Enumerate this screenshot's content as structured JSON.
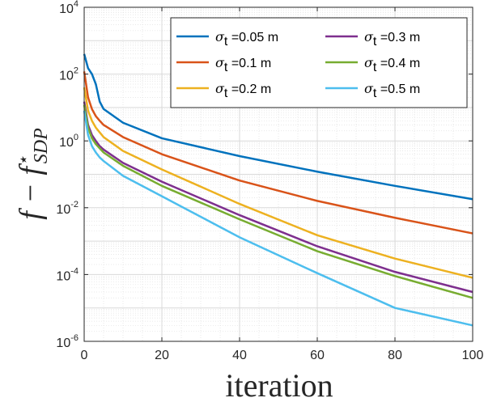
{
  "chart_data": {
    "type": "line",
    "title": "",
    "xlabel": "iteration",
    "ylabel": "f − f⋆_SDP",
    "ylabel_parts": {
      "main": "f − f",
      "sup": "⋆",
      "sub": "SDP"
    },
    "xlim": [
      0,
      100
    ],
    "ylim": [
      1e-06,
      10000
    ],
    "yscale": "log",
    "grid": true,
    "legend_placement": "top-right",
    "x_ticks": [
      "0",
      "20",
      "40",
      "60",
      "80",
      "100"
    ],
    "y_ticks": [
      {
        "base": "10",
        "exp": "-6"
      },
      {
        "base": "10",
        "exp": "-4"
      },
      {
        "base": "10",
        "exp": "-2"
      },
      {
        "base": "10",
        "exp": "0"
      },
      {
        "base": "10",
        "exp": "2"
      },
      {
        "base": "10",
        "exp": "4"
      }
    ],
    "series": [
      {
        "name": "σt =0.05 m",
        "sym": "σ",
        "sub": "t",
        "rest": " =0.05 m",
        "color": "#0072BD",
        "x": [
          0,
          1,
          2,
          3,
          4,
          5,
          10,
          20,
          40,
          60,
          80,
          100
        ],
        "y": [
          400,
          150,
          100,
          50,
          15,
          9,
          3.5,
          1.2,
          0.35,
          0.12,
          0.045,
          0.018
        ]
      },
      {
        "name": "σt =0.1 m",
        "sym": "σ",
        "sub": "t",
        "rest": " =0.1 m",
        "color": "#D95319",
        "x": [
          0,
          1,
          2,
          3,
          4,
          5,
          10,
          20,
          40,
          60,
          80,
          100
        ],
        "y": [
          120,
          20,
          9,
          5.5,
          4,
          3,
          1.3,
          0.4,
          0.065,
          0.016,
          0.005,
          0.0017
        ]
      },
      {
        "name": "σt =0.2 m",
        "sym": "σ",
        "sub": "t",
        "rest": " =0.2 m",
        "color": "#EDB120",
        "x": [
          0,
          1,
          2,
          3,
          4,
          5,
          10,
          20,
          40,
          60,
          80,
          100
        ],
        "y": [
          40,
          8,
          4,
          2.5,
          1.8,
          1.3,
          0.5,
          0.14,
          0.013,
          0.0015,
          0.0003,
          8e-05
        ]
      },
      {
        "name": "σt =0.3 m",
        "sym": "σ",
        "sub": "t",
        "rest": " =0.3 m",
        "color": "#7E2F8E",
        "x": [
          0,
          1,
          2,
          3,
          4,
          5,
          10,
          20,
          40,
          60,
          80,
          100
        ],
        "y": [
          15,
          3,
          1.5,
          1,
          0.7,
          0.55,
          0.22,
          0.06,
          0.006,
          0.0007,
          0.00012,
          3e-05
        ]
      },
      {
        "name": "σt =0.4 m",
        "sym": "σ",
        "sub": "t",
        "rest": " =0.4 m",
        "color": "#77AC30",
        "x": [
          0,
          1,
          2,
          3,
          4,
          5,
          10,
          20,
          40,
          60,
          80,
          100
        ],
        "y": [
          12,
          2.5,
          1.2,
          0.8,
          0.6,
          0.45,
          0.18,
          0.045,
          0.0045,
          0.0005,
          9e-05,
          2e-05
        ]
      },
      {
        "name": "σt =0.5 m",
        "sym": "σ",
        "sub": "t",
        "rest": " =0.5 m",
        "color": "#4DBEEE",
        "x": [
          0,
          1,
          2,
          3,
          4,
          5,
          10,
          20,
          40,
          60,
          80,
          100
        ],
        "y": [
          8,
          1.5,
          0.7,
          0.45,
          0.32,
          0.25,
          0.09,
          0.022,
          0.0013,
          0.00011,
          1e-05,
          3e-06
        ]
      }
    ]
  }
}
